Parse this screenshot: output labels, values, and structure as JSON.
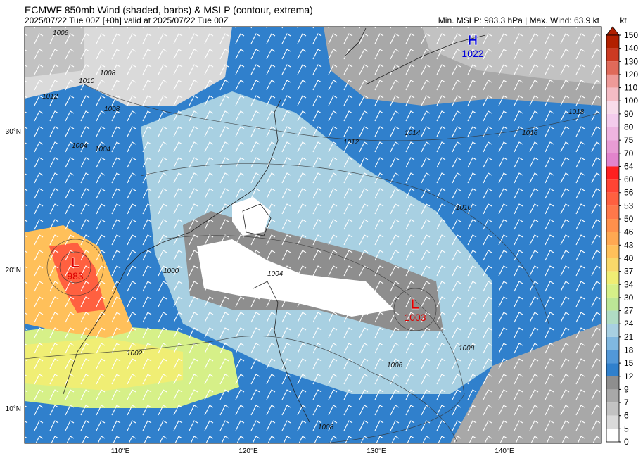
{
  "header": {
    "title": "ECMWF 850mb Wind (shaded, barbs) & MSLP (contour, extrema)",
    "subtitle": "2025/07/22 Tue 00Z [+0h] valid at 2025/07/22 Tue 00Z",
    "info": "Min. MSLP: 983.3 hPa | Max. Wind: 63.9 kt"
  },
  "map": {
    "lat_labels": [
      "30°N",
      "20°N",
      "10°N"
    ],
    "lon_labels": [
      "110°E",
      "120°E",
      "130°E",
      "140°E"
    ],
    "extrema": [
      {
        "symbol": "H",
        "value": "1022",
        "color": "#0000dd"
      },
      {
        "symbol": "L",
        "value": "983",
        "color": "#dd0000"
      },
      {
        "symbol": "L",
        "value": "1003",
        "color": "#dd0000"
      }
    ],
    "contour_labels": [
      "1006",
      "1008",
      "1010",
      "1012",
      "1008",
      "1004",
      "1004",
      "1012",
      "1014",
      "1016",
      "1018",
      "1010",
      "1000",
      "1004",
      "1002",
      "1006",
      "1008",
      "1008"
    ]
  },
  "colorbar": {
    "unit": "kt",
    "levels": [
      150,
      140,
      130,
      120,
      110,
      100,
      90,
      80,
      75,
      70,
      64,
      60,
      56,
      53,
      50,
      46,
      43,
      40,
      37,
      34,
      30,
      27,
      24,
      21,
      18,
      15,
      12,
      9,
      7,
      6,
      5,
      0
    ],
    "colors": [
      "#b22000",
      "#cc3a22",
      "#e06a5a",
      "#ee9a98",
      "#f4bcc4",
      "#f8dcea",
      "#f4ccec",
      "#eeb4e0",
      "#e89cd4",
      "#e284cc",
      "#ff2020",
      "#ff4434",
      "#ff6040",
      "#ff784a",
      "#ff904c",
      "#ffa852",
      "#ffc05a",
      "#f8d86a",
      "#f0ee74",
      "#d6f088",
      "#bce696",
      "#b0dcc4",
      "#a8d0e2",
      "#80b8e0",
      "#5298d8",
      "#3080cc",
      "#8e8e8e",
      "#a8a8a8",
      "#c2c2c2",
      "#dadada",
      "#ffffff"
    ],
    "top_color": "#b22000"
  }
}
